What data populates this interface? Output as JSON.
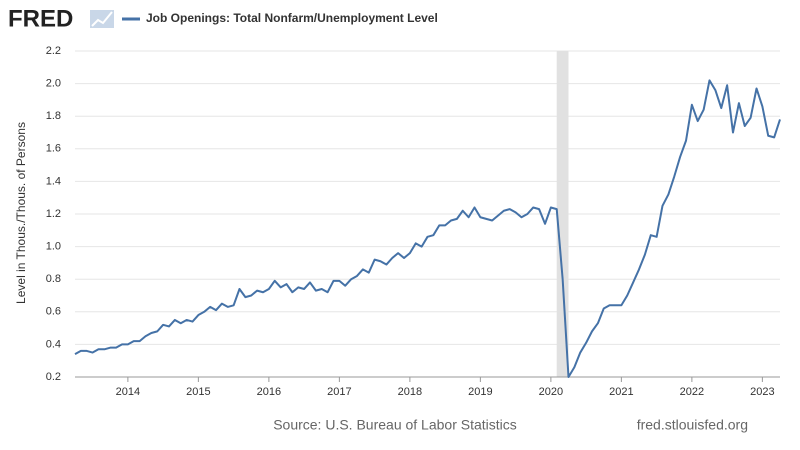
{
  "chart_data": {
    "type": "line",
    "logo": "FRED",
    "title": "Job Openings: Total Nonfarm/Unemployment Level",
    "y_label": "Level in Thous./Thous. of Persons",
    "source": "Source: U.S. Bureau of Labor Statistics",
    "site": "fred.stlouisfed.org",
    "xlim": [
      2013.25,
      2023.25
    ],
    "xticks": [
      2014,
      2015,
      2016,
      2017,
      2018,
      2019,
      2020,
      2021,
      2022,
      2023
    ],
    "ylim": [
      0.2,
      2.2
    ],
    "yticks": [
      0.2,
      0.4,
      0.6,
      0.8,
      {
        "value": 1,
        "label": "1.0"
      },
      1.2,
      1.4,
      1.6,
      1.8,
      {
        "value": 2,
        "label": "2.0"
      },
      2.2
    ],
    "grid": true,
    "recession": [
      2020.083,
      2020.25
    ],
    "recession_color": "#e1e1e1",
    "x": [
      2013.25,
      2013.333,
      2013.417,
      2013.5,
      2013.583,
      2013.667,
      2013.75,
      2013.833,
      2013.917,
      2014,
      2014.083,
      2014.167,
      2014.25,
      2014.333,
      2014.417,
      2014.5,
      2014.583,
      2014.667,
      2014.75,
      2014.833,
      2014.917,
      2015,
      2015.083,
      2015.167,
      2015.25,
      2015.333,
      2015.417,
      2015.5,
      2015.583,
      2015.667,
      2015.75,
      2015.833,
      2015.917,
      2016,
      2016.083,
      2016.167,
      2016.25,
      2016.333,
      2016.417,
      2016.5,
      2016.583,
      2016.667,
      2016.75,
      2016.833,
      2016.917,
      2017,
      2017.083,
      2017.167,
      2017.25,
      2017.333,
      2017.417,
      2017.5,
      2017.583,
      2017.667,
      2017.75,
      2017.833,
      2017.917,
      2018,
      2018.083,
      2018.167,
      2018.25,
      2018.333,
      2018.417,
      2018.5,
      2018.583,
      2018.667,
      2018.75,
      2018.833,
      2018.917,
      2019,
      2019.083,
      2019.167,
      2019.25,
      2019.333,
      2019.417,
      2019.5,
      2019.583,
      2019.667,
      2019.75,
      2019.833,
      2019.917,
      2020,
      2020.083,
      2020.167,
      2020.25,
      2020.333,
      2020.417,
      2020.5,
      2020.583,
      2020.667,
      2020.75,
      2020.833,
      2020.917,
      2021,
      2021.083,
      2021.167,
      2021.25,
      2021.333,
      2021.417,
      2021.5,
      2021.583,
      2021.667,
      2021.75,
      2021.833,
      2021.917,
      2022,
      2022.083,
      2022.167,
      2022.25,
      2022.333,
      2022.417,
      2022.5,
      2022.583,
      2022.667,
      2022.75,
      2022.833,
      2022.917,
      2023,
      2023.083,
      2023.167,
      2023.25
    ],
    "series": [
      {
        "name": "Job Openings: Total Nonfarm/Unemployment Level",
        "color": "#4572a7",
        "values": [
          0.34,
          0.36,
          0.36,
          0.35,
          0.37,
          0.37,
          0.38,
          0.38,
          0.4,
          0.4,
          0.42,
          0.42,
          0.45,
          0.47,
          0.48,
          0.52,
          0.51,
          0.55,
          0.53,
          0.55,
          0.54,
          0.58,
          0.6,
          0.63,
          0.61,
          0.65,
          0.63,
          0.64,
          0.74,
          0.69,
          0.7,
          0.73,
          0.72,
          0.74,
          0.79,
          0.75,
          0.77,
          0.72,
          0.75,
          0.74,
          0.78,
          0.73,
          0.74,
          0.72,
          0.79,
          0.79,
          0.76,
          0.8,
          0.82,
          0.86,
          0.84,
          0.92,
          0.91,
          0.89,
          0.93,
          0.96,
          0.93,
          0.96,
          1.02,
          1.0,
          1.06,
          1.07,
          1.13,
          1.13,
          1.16,
          1.17,
          1.22,
          1.18,
          1.24,
          1.18,
          1.17,
          1.16,
          1.19,
          1.22,
          1.23,
          1.21,
          1.18,
          1.2,
          1.24,
          1.23,
          1.14,
          1.24,
          1.23,
          0.8,
          0.2,
          0.26,
          0.35,
          0.41,
          0.48,
          0.53,
          0.62,
          0.64,
          0.64,
          0.64,
          0.7,
          0.78,
          0.86,
          0.95,
          1.07,
          1.06,
          1.25,
          1.32,
          1.43,
          1.55,
          1.65,
          1.87,
          1.77,
          1.84,
          2.02,
          1.96,
          1.85,
          1.99,
          1.7,
          1.88,
          1.74,
          1.79,
          1.97,
          1.86,
          1.68,
          1.67,
          1.78
        ]
      }
    ]
  }
}
